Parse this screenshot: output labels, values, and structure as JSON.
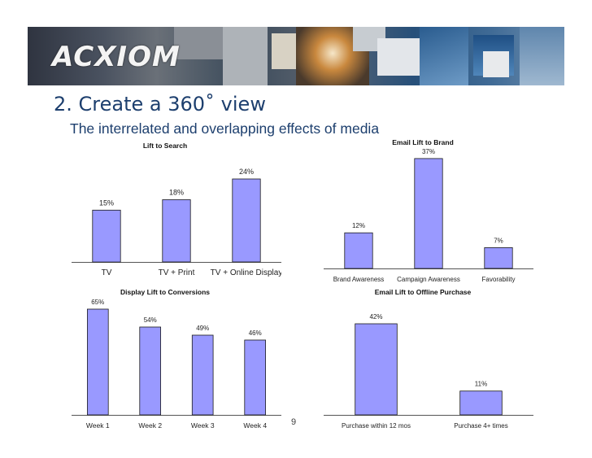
{
  "slide": {
    "logo_text": "ACXIOM",
    "title": "2. Create a 360˚ view",
    "subtitle": "The interrelated and overlapping effects of media",
    "page_number": "9"
  },
  "colors": {
    "bar_fill": "#9999ff",
    "bar_stroke": "#1a1a1a",
    "title_color": "#1d3f6e"
  },
  "chart_data": [
    {
      "type": "bar",
      "title": "Lift to Search",
      "categories": [
        "TV",
        "TV + Print",
        "TV + Online Display"
      ],
      "values": [
        15,
        18,
        24
      ],
      "labels": [
        "15%",
        "18%",
        "24%"
      ],
      "ylim": [
        0,
        32
      ],
      "xlabel": "",
      "ylabel": "",
      "grid": false,
      "legend": "none"
    },
    {
      "type": "bar",
      "title": "Email Lift to Brand",
      "categories": [
        "Brand Awareness",
        "Campaign Awareness",
        "Favorability"
      ],
      "values": [
        12,
        37,
        7
      ],
      "labels": [
        "12%",
        "37%",
        "7%"
      ],
      "ylim": [
        0,
        40
      ],
      "xlabel": "",
      "ylabel": "",
      "grid": false,
      "legend": "none"
    },
    {
      "type": "bar",
      "title": "Display Lift to Conversions",
      "categories": [
        "Week 1",
        "Week 2",
        "Week 3",
        "Week 4"
      ],
      "values": [
        65,
        54,
        49,
        46
      ],
      "labels": [
        "65%",
        "54%",
        "49%",
        "46%"
      ],
      "ylim": [
        0,
        66
      ],
      "xlabel": "",
      "ylabel": "",
      "grid": false,
      "legend": "none"
    },
    {
      "type": "bar",
      "title": "Email Lift to Offline Purchase",
      "categories": [
        "Purchase within 12 mos",
        "Purchase 4+ times"
      ],
      "values": [
        42,
        11
      ],
      "labels": [
        "42%",
        "11%"
      ],
      "ylim": [
        0,
        48
      ],
      "xlabel": "",
      "ylabel": "",
      "grid": false,
      "legend": "none"
    }
  ]
}
